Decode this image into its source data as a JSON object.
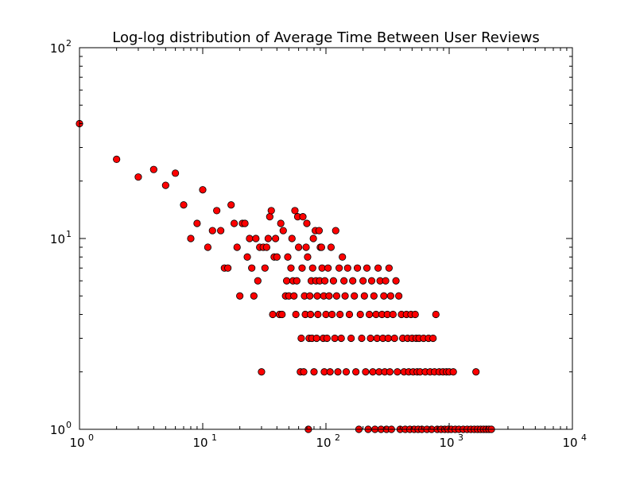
{
  "chart_data": {
    "type": "scatter",
    "title": "Log-log distribution of Average Time Between User Reviews",
    "xlabel": "",
    "ylabel": "",
    "xscale": "log",
    "yscale": "log",
    "xlim": [
      1,
      10000
    ],
    "ylim": [
      1,
      100
    ],
    "grid": false,
    "legend": "none",
    "marker_color": "#ff0000",
    "marker_edge_color": "#000000",
    "x_ticks": [
      {
        "base": "10",
        "exp": "0"
      },
      {
        "base": "10",
        "exp": "1"
      },
      {
        "base": "10",
        "exp": "2"
      },
      {
        "base": "10",
        "exp": "3"
      },
      {
        "base": "10",
        "exp": "4"
      }
    ],
    "y_ticks": [
      {
        "base": "10",
        "exp": "0"
      },
      {
        "base": "10",
        "exp": "1"
      },
      {
        "base": "10",
        "exp": "2"
      }
    ],
    "points": [
      [
        1,
        40
      ],
      [
        2,
        26
      ],
      [
        3,
        21
      ],
      [
        4,
        23
      ],
      [
        5,
        19
      ],
      [
        6,
        22
      ],
      [
        7,
        15
      ],
      [
        8,
        10
      ],
      [
        9,
        12
      ],
      [
        10,
        18
      ],
      [
        11,
        9
      ],
      [
        12,
        11
      ],
      [
        13,
        14
      ],
      [
        14,
        11
      ],
      [
        15,
        7
      ],
      [
        16,
        7
      ],
      [
        17,
        15
      ],
      [
        18,
        12
      ],
      [
        19,
        9
      ],
      [
        20,
        5
      ],
      [
        21,
        12
      ],
      [
        22,
        12
      ],
      [
        23,
        8
      ],
      [
        24,
        10
      ],
      [
        25,
        7
      ],
      [
        26,
        5
      ],
      [
        27,
        10
      ],
      [
        28,
        6
      ],
      [
        29,
        9
      ],
      [
        30,
        2
      ],
      [
        31,
        9
      ],
      [
        32,
        7
      ],
      [
        33,
        9
      ],
      [
        34,
        10
      ],
      [
        35,
        13
      ],
      [
        36,
        14
      ],
      [
        37,
        4
      ],
      [
        38,
        8
      ],
      [
        39,
        10
      ],
      [
        40,
        8
      ],
      [
        42,
        4
      ],
      [
        43,
        12
      ],
      [
        44,
        4
      ],
      [
        45,
        11
      ],
      [
        47,
        5
      ],
      [
        48,
        6
      ],
      [
        49,
        8
      ],
      [
        50,
        5
      ],
      [
        52,
        7
      ],
      [
        53,
        10
      ],
      [
        54,
        6
      ],
      [
        55,
        5
      ],
      [
        56,
        14
      ],
      [
        57,
        4
      ],
      [
        58,
        6
      ],
      [
        59,
        13
      ],
      [
        60,
        9
      ],
      [
        62,
        2
      ],
      [
        63,
        3
      ],
      [
        64,
        7
      ],
      [
        65,
        13
      ],
      [
        66,
        2
      ],
      [
        67,
        5
      ],
      [
        68,
        4
      ],
      [
        69,
        9
      ],
      [
        70,
        12
      ],
      [
        71,
        8
      ],
      [
        72,
        1
      ],
      [
        73,
        3
      ],
      [
        74,
        5
      ],
      [
        75,
        4
      ],
      [
        76,
        6
      ],
      [
        77,
        3
      ],
      [
        78,
        7
      ],
      [
        79,
        10
      ],
      [
        80,
        2
      ],
      [
        82,
        11
      ],
      [
        83,
        6
      ],
      [
        84,
        3
      ],
      [
        85,
        5
      ],
      [
        86,
        4
      ],
      [
        88,
        11
      ],
      [
        89,
        6
      ],
      [
        90,
        9
      ],
      [
        92,
        9
      ],
      [
        93,
        7
      ],
      [
        95,
        3
      ],
      [
        96,
        5
      ],
      [
        97,
        2
      ],
      [
        98,
        6
      ],
      [
        100,
        4
      ],
      [
        102,
        3
      ],
      [
        104,
        7
      ],
      [
        106,
        5
      ],
      [
        108,
        2
      ],
      [
        110,
        9
      ],
      [
        112,
        4
      ],
      [
        115,
        6
      ],
      [
        118,
        3
      ],
      [
        120,
        11
      ],
      [
        122,
        5
      ],
      [
        125,
        2
      ],
      [
        128,
        7
      ],
      [
        130,
        4
      ],
      [
        133,
        3
      ],
      [
        136,
        8
      ],
      [
        140,
        6
      ],
      [
        143,
        5
      ],
      [
        146,
        2
      ],
      [
        150,
        7
      ],
      [
        155,
        4
      ],
      [
        160,
        3
      ],
      [
        165,
        6
      ],
      [
        170,
        5
      ],
      [
        175,
        2
      ],
      [
        180,
        7
      ],
      [
        185,
        1
      ],
      [
        190,
        4
      ],
      [
        195,
        3
      ],
      [
        200,
        6
      ],
      [
        205,
        5
      ],
      [
        210,
        2
      ],
      [
        215,
        7
      ],
      [
        220,
        1
      ],
      [
        225,
        4
      ],
      [
        230,
        3
      ],
      [
        235,
        6
      ],
      [
        240,
        2
      ],
      [
        245,
        5
      ],
      [
        250,
        1
      ],
      [
        255,
        4
      ],
      [
        260,
        3
      ],
      [
        265,
        7
      ],
      [
        270,
        2
      ],
      [
        275,
        6
      ],
      [
        280,
        1
      ],
      [
        285,
        4
      ],
      [
        290,
        3
      ],
      [
        295,
        5
      ],
      [
        300,
        2
      ],
      [
        305,
        6
      ],
      [
        310,
        1
      ],
      [
        315,
        4
      ],
      [
        320,
        3
      ],
      [
        325,
        7
      ],
      [
        330,
        2
      ],
      [
        335,
        5
      ],
      [
        340,
        1
      ],
      [
        350,
        4
      ],
      [
        360,
        3
      ],
      [
        370,
        6
      ],
      [
        380,
        2
      ],
      [
        390,
        5
      ],
      [
        400,
        1
      ],
      [
        410,
        4
      ],
      [
        420,
        3
      ],
      [
        430,
        2
      ],
      [
        440,
        1
      ],
      [
        450,
        4
      ],
      [
        460,
        3
      ],
      [
        470,
        2
      ],
      [
        480,
        1
      ],
      [
        490,
        4
      ],
      [
        500,
        3
      ],
      [
        510,
        2
      ],
      [
        520,
        1
      ],
      [
        530,
        4
      ],
      [
        540,
        3
      ],
      [
        550,
        2
      ],
      [
        560,
        1
      ],
      [
        570,
        3
      ],
      [
        580,
        2
      ],
      [
        600,
        1
      ],
      [
        620,
        3
      ],
      [
        640,
        2
      ],
      [
        660,
        1
      ],
      [
        680,
        3
      ],
      [
        700,
        2
      ],
      [
        720,
        1
      ],
      [
        740,
        3
      ],
      [
        760,
        2
      ],
      [
        780,
        4
      ],
      [
        800,
        1
      ],
      [
        830,
        2
      ],
      [
        860,
        1
      ],
      [
        890,
        2
      ],
      [
        920,
        1
      ],
      [
        950,
        2
      ],
      [
        980,
        1
      ],
      [
        1000,
        2
      ],
      [
        1040,
        1
      ],
      [
        1080,
        2
      ],
      [
        1120,
        1
      ],
      [
        1200,
        1
      ],
      [
        1300,
        1
      ],
      [
        1400,
        1
      ],
      [
        1500,
        1
      ],
      [
        1600,
        1
      ],
      [
        1650,
        2
      ],
      [
        1700,
        1
      ],
      [
        1800,
        1
      ],
      [
        1900,
        1
      ],
      [
        2000,
        1
      ],
      [
        2100,
        1
      ],
      [
        2200,
        1
      ]
    ]
  }
}
